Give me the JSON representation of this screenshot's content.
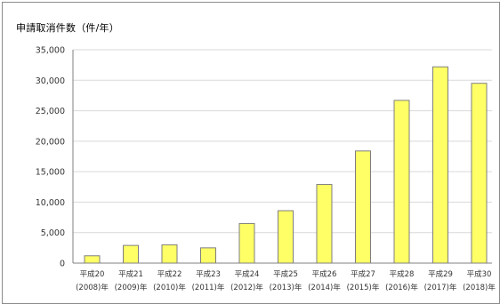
{
  "chart_data": {
    "type": "bar",
    "title": "申請取消件数（件/年）",
    "categories": [
      {
        "line1": "平成20",
        "line2": "(2008)年"
      },
      {
        "line1": "平成21",
        "line2": "(2009)年"
      },
      {
        "line1": "平成22",
        "line2": "(2010)年"
      },
      {
        "line1": "平成23",
        "line2": "(2011)年"
      },
      {
        "line1": "平成24",
        "line2": "(2012)年"
      },
      {
        "line1": "平成25",
        "line2": "(2013)年"
      },
      {
        "line1": "平成26",
        "line2": "(2014)年"
      },
      {
        "line1": "平成27",
        "line2": "(2015)年"
      },
      {
        "line1": "平成28",
        "line2": "(2016)年"
      },
      {
        "line1": "平成29",
        "line2": "(2017)年"
      },
      {
        "line1": "平成30",
        "line2": "(2018)年"
      }
    ],
    "values": [
      1200,
      2900,
      3000,
      2500,
      6500,
      8600,
      12900,
      18400,
      26700,
      32200,
      29500
    ],
    "ylim": [
      0,
      35000
    ],
    "yticks": [
      0,
      5000,
      10000,
      15000,
      20000,
      25000,
      30000,
      35000
    ],
    "ytick_labels": [
      "0",
      "5,000",
      "10,000",
      "15,000",
      "20,000",
      "25,000",
      "30,000",
      "35,000"
    ],
    "grid": true,
    "xlabel": "",
    "ylabel": "",
    "colors": {
      "bar_fill": "#ffff66",
      "bar_stroke": "#7f7f7f",
      "grid": "#d9d9d9",
      "axis": "#808080"
    }
  }
}
